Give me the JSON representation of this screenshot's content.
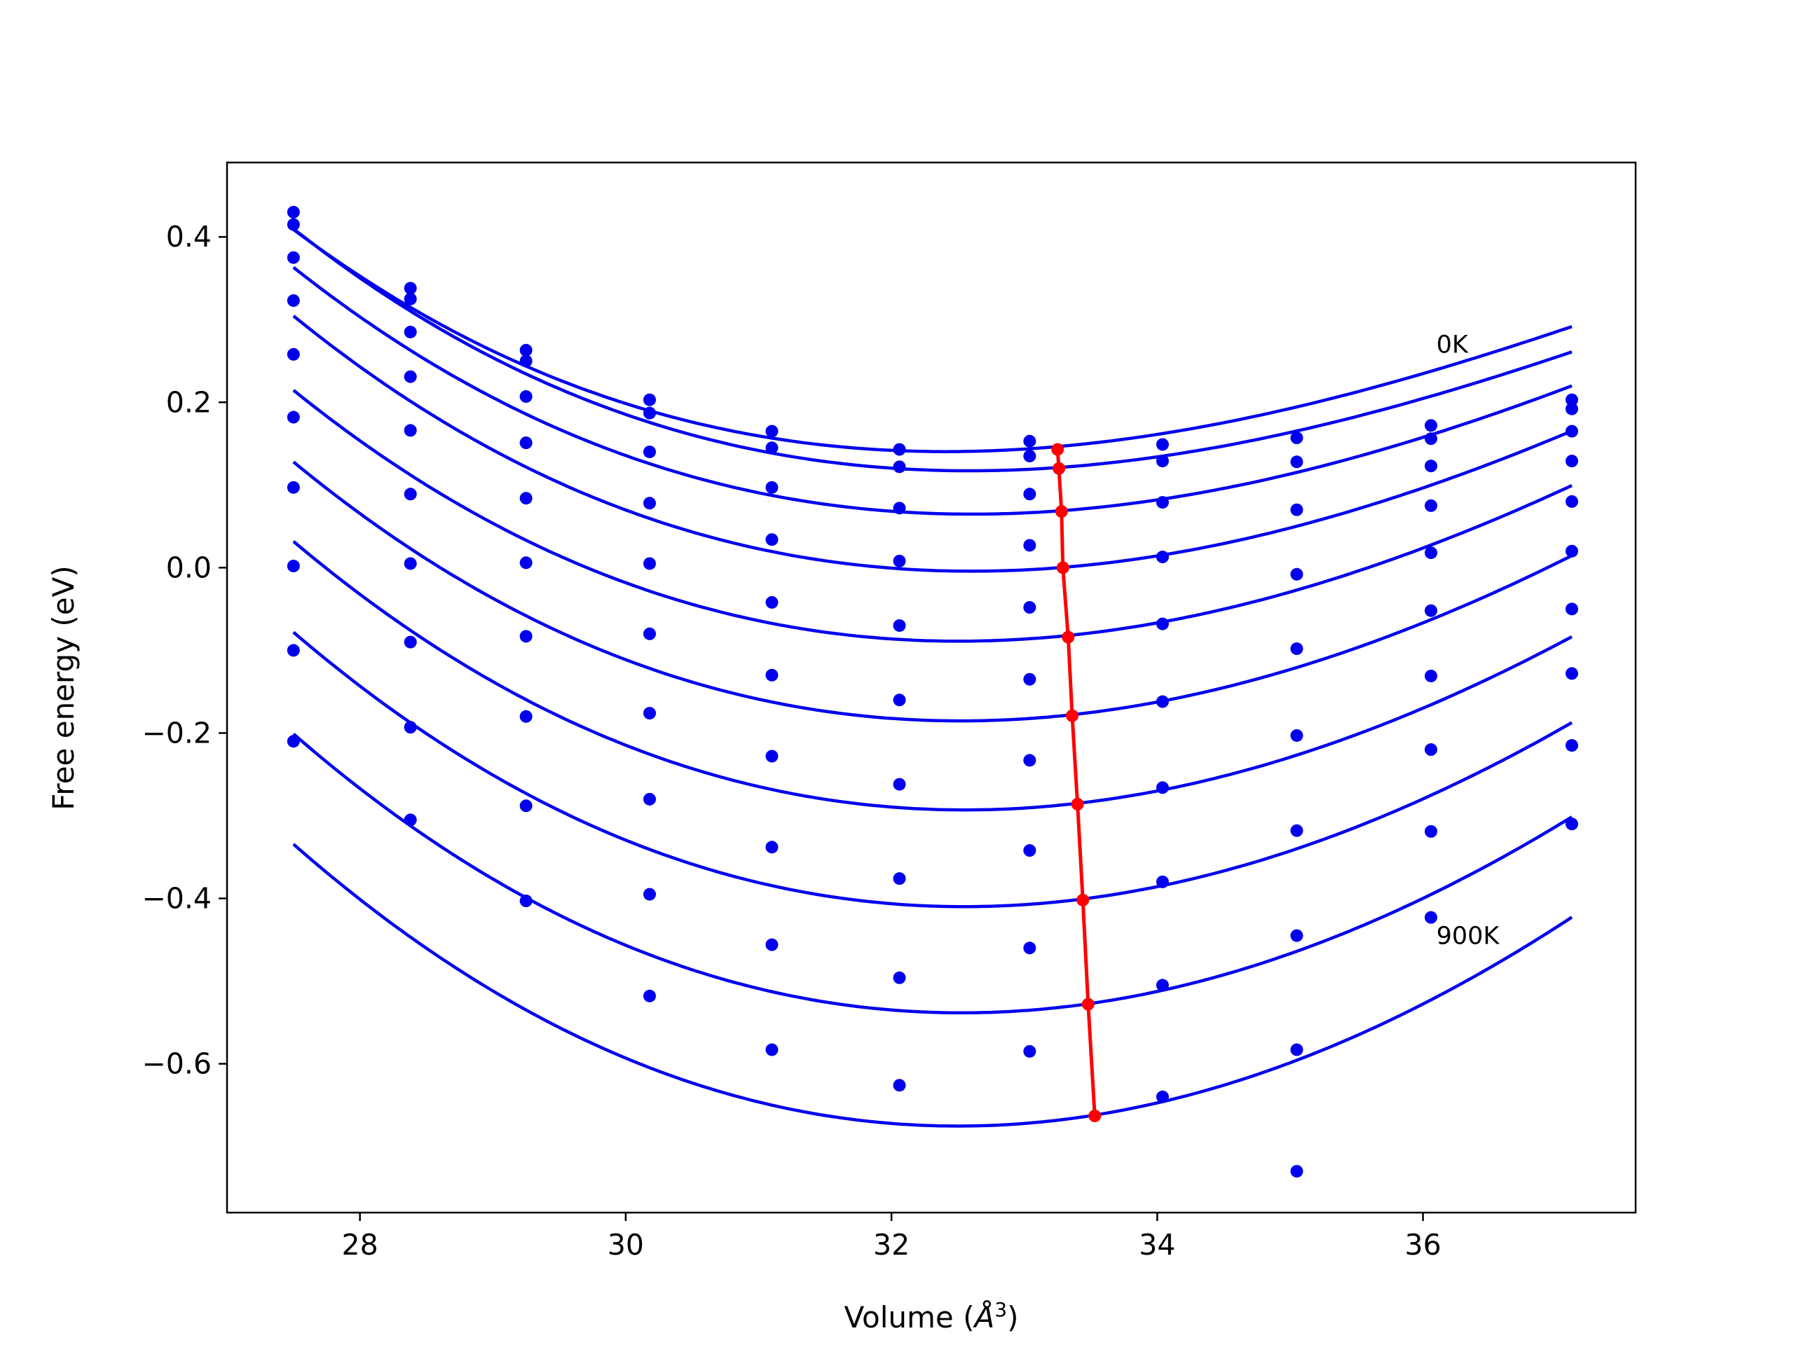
{
  "chart_data": {
    "type": "scatter",
    "xlabel": "Volume (",
    "xlabel_unit": "Å",
    "xlabel_exp": "3",
    "xlabel_close": ")",
    "ylabel": "Free energy (eV)",
    "xlim": [
      27.0,
      37.6
    ],
    "ylim": [
      -0.78,
      0.49
    ],
    "xticks": [
      28,
      30,
      32,
      34,
      36
    ],
    "yticks": [
      0.4,
      0.2,
      0.0,
      -0.2,
      -0.4,
      -0.6
    ],
    "ytick_labels": [
      "0.4",
      "0.2",
      "0.0",
      "−0.2",
      "−0.4",
      "−0.6"
    ],
    "grid": false,
    "annotations": [
      {
        "text": "0K",
        "x": 36.1,
        "y": 0.26
      },
      {
        "text": "900K",
        "x": 36.1,
        "y": -0.455
      }
    ],
    "colors": {
      "points": "#0000ee",
      "fit": "#0000ee",
      "minima": "#ff0000"
    },
    "x": [
      27.5,
      28.38,
      29.25,
      30.18,
      31.1,
      32.06,
      33.04,
      34.04,
      35.05,
      36.06,
      37.12
    ],
    "series": [
      {
        "values": [
          0.43,
          0.338,
          0.263,
          0.203,
          0.165,
          0.143,
          0.153,
          0.149,
          0.157,
          0.172,
          0.203
        ],
        "fit_poly": [
          0.1445,
          0.0117,
          0.008,
          -0.00045
        ],
        "fit_v0": 33.1
      },
      {
        "values": [
          0.415,
          0.325,
          0.25,
          0.187,
          0.145,
          0.122,
          0.135,
          0.129,
          0.128,
          0.156,
          0.192
        ],
        "fit_poly": [
          0.1205,
          0.0106,
          0.0082,
          -0.00045
        ],
        "fit_v0": 33.2
      },
      {
        "values": [
          0.375,
          0.285,
          0.207,
          0.14,
          0.097,
          0.072,
          0.089,
          0.079,
          0.07,
          0.123,
          0.165
        ],
        "fit_poly": [
          0.068,
          0.0108,
          0.0087,
          -0.0004
        ],
        "fit_v0": 33.2
      },
      {
        "values": [
          0.323,
          0.231,
          0.151,
          0.078,
          0.034,
          0.008,
          0.027,
          0.013,
          -0.008,
          0.075,
          0.129
        ],
        "fit_poly": [
          0.0005,
          0.0134,
          0.0092,
          -0.00037
        ],
        "fit_v0": 33.3
      },
      {
        "values": [
          0.258,
          0.166,
          0.084,
          0.005,
          -0.042,
          -0.07,
          -0.048,
          -0.068,
          -0.098,
          0.018,
          0.08
        ],
        "fit_poly": [
          -0.0825,
          0.0159,
          0.0096,
          -0.00034
        ],
        "fit_v0": 33.3
      },
      {
        "values": [
          0.182,
          0.089,
          0.006,
          -0.08,
          -0.13,
          -0.16,
          -0.135,
          -0.162,
          -0.203,
          -0.052,
          0.02
        ],
        "fit_poly": [
          -0.178,
          0.0174,
          0.0101,
          -0.00031
        ],
        "fit_v0": 33.35
      },
      {
        "values": [
          0.097,
          0.005,
          -0.083,
          -0.176,
          -0.228,
          -0.262,
          -0.233,
          -0.266,
          -0.318,
          -0.131,
          -0.05
        ],
        "fit_poly": [
          -0.285,
          0.0186,
          0.0106,
          -0.00028
        ],
        "fit_v0": 33.4
      },
      {
        "values": [
          0.002,
          -0.09,
          -0.18,
          -0.28,
          -0.338,
          -0.376,
          -0.342,
          -0.38,
          -0.445,
          -0.22,
          -0.128
        ],
        "fit_poly": [
          -0.4005,
          0.0207,
          0.0111,
          -0.00025
        ],
        "fit_v0": 33.45
      },
      {
        "values": [
          -0.1,
          -0.193,
          -0.288,
          -0.395,
          -0.456,
          -0.496,
          -0.46,
          -0.505,
          -0.583,
          -0.319,
          -0.215
        ],
        "fit_poly": [
          -0.527,
          0.0232,
          0.0116,
          -0.00022
        ],
        "fit_v0": 33.5
      },
      {
        "values": [
          -0.21,
          -0.305,
          -0.403,
          -0.518,
          -0.583,
          -0.626,
          -0.585,
          -0.64,
          -0.73,
          -0.423,
          -0.31
        ],
        "fit_poly": [
          -0.6615,
          0.0261,
          0.0121,
          -0.00019
        ],
        "fit_v0": 33.55
      }
    ],
    "minima": {
      "x": [
        33.25,
        33.26,
        33.28,
        33.29,
        33.33,
        33.36,
        33.4,
        33.44,
        33.48,
        33.53
      ],
      "y": [
        0.143,
        0.12,
        0.068,
        0.0,
        -0.084,
        -0.179,
        -0.286,
        -0.402,
        -0.528,
        -0.663
      ]
    }
  }
}
